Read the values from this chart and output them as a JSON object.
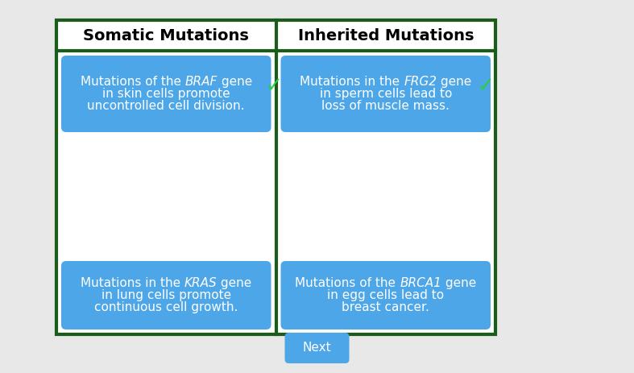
{
  "background_color": "#e8e8e8",
  "outer_border_color": "#1a5c1a",
  "outer_border_linewidth": 3,
  "header_bg": "#ffffff",
  "col_headers": [
    "Somatic Mutations",
    "Inherited Mutations"
  ],
  "header_fontsize": 14,
  "card_bg": "#4da6e8",
  "checkmark_color": "#2ecc40",
  "checkmark_fontsize": 18,
  "card_text_color": "#ffffff",
  "card_fontsize": 11,
  "cards": [
    {
      "col": 0,
      "row": "top",
      "lines": [
        [
          {
            "text": "Mutations of the ",
            "italic": false
          },
          {
            "text": "BRAF",
            "italic": true
          },
          {
            "text": " gene",
            "italic": false
          }
        ],
        [
          {
            "text": "in skin cells promote",
            "italic": false
          }
        ],
        [
          {
            "text": "uncontrolled cell division.",
            "italic": false
          }
        ]
      ],
      "has_check": true
    },
    {
      "col": 1,
      "row": "top",
      "lines": [
        [
          {
            "text": "Mutations in the ",
            "italic": false
          },
          {
            "text": "FRG2",
            "italic": true
          },
          {
            "text": " gene",
            "italic": false
          }
        ],
        [
          {
            "text": "in sperm cells lead to",
            "italic": false
          }
        ],
        [
          {
            "text": "loss of muscle mass.",
            "italic": false
          }
        ]
      ],
      "has_check": true
    },
    {
      "col": 0,
      "row": "bottom",
      "lines": [
        [
          {
            "text": "Mutations in the ",
            "italic": false
          },
          {
            "text": "KRAS",
            "italic": true
          },
          {
            "text": " gene",
            "italic": false
          }
        ],
        [
          {
            "text": "in lung cells promote",
            "italic": false
          }
        ],
        [
          {
            "text": "continuous cell growth.",
            "italic": false
          }
        ]
      ],
      "has_check": false
    },
    {
      "col": 1,
      "row": "bottom",
      "lines": [
        [
          {
            "text": "Mutations of the ",
            "italic": false
          },
          {
            "text": "BRCA1",
            "italic": true
          },
          {
            "text": " gene",
            "italic": false
          }
        ],
        [
          {
            "text": "in egg cells lead to",
            "italic": false
          }
        ],
        [
          {
            "text": "breast cancer.",
            "italic": false
          }
        ]
      ],
      "has_check": false
    }
  ],
  "next_button_color": "#4da6e8",
  "next_button_text": "Next",
  "next_button_fontsize": 11
}
